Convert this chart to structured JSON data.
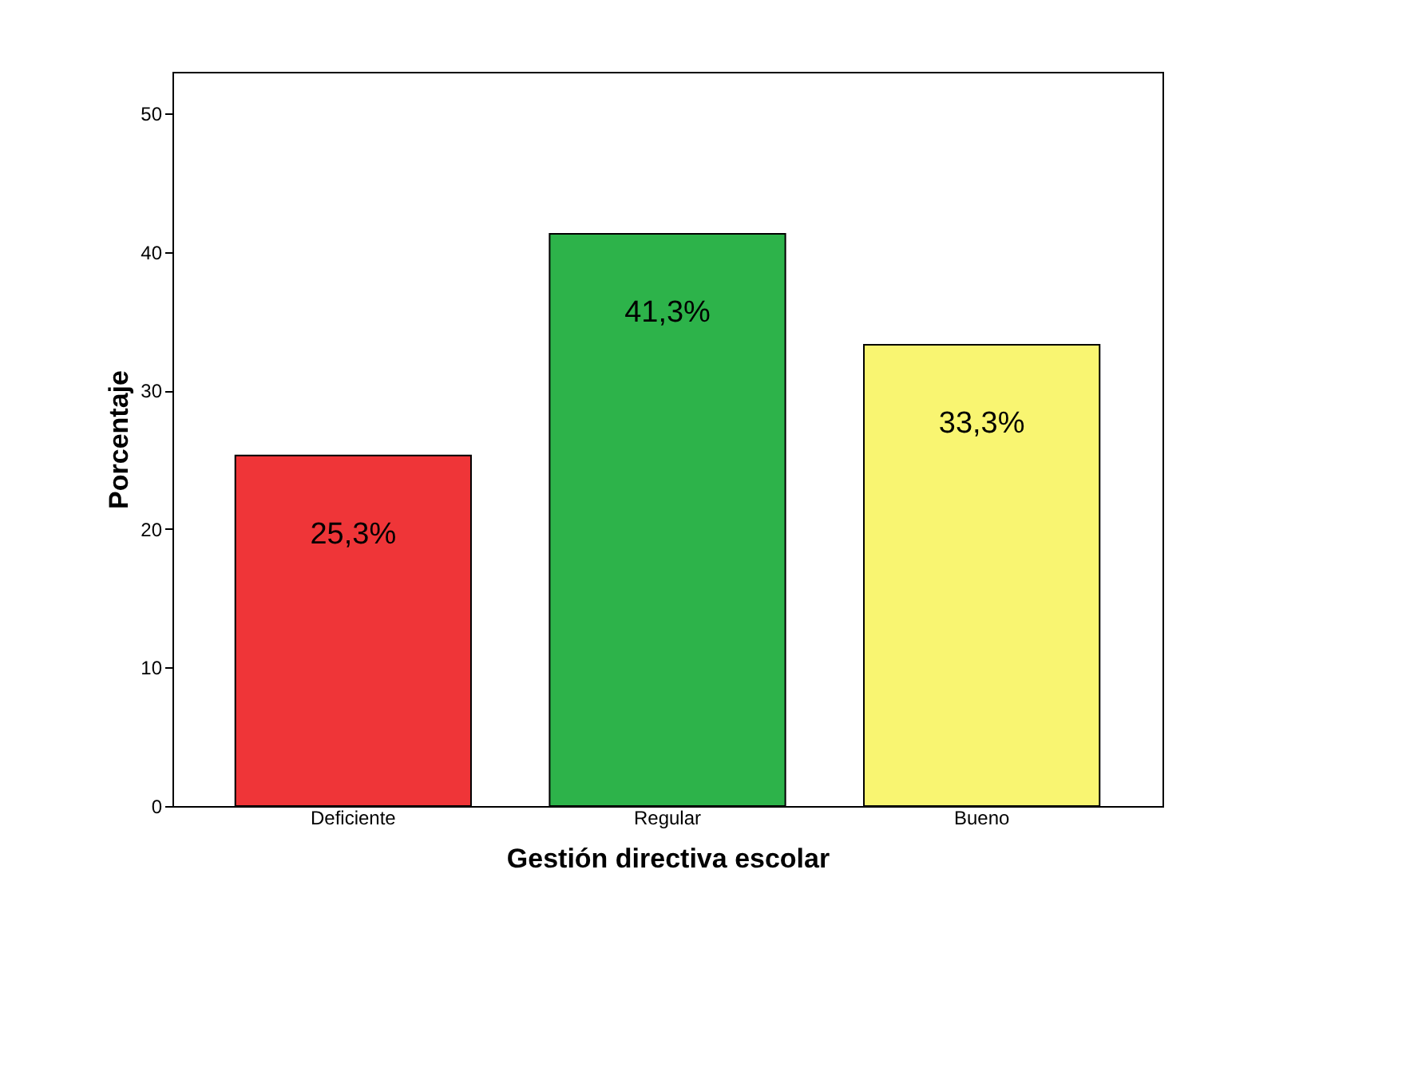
{
  "chart_data": {
    "type": "bar",
    "xlabel": "Gestión directiva escolar",
    "ylabel": "Porcentaje",
    "categories": [
      "Deficiente",
      "Regular",
      "Bueno"
    ],
    "values": [
      25.3,
      41.3,
      33.3
    ],
    "colors": [
      "#ef3538",
      "#2db34a",
      "#f9f571"
    ],
    "value_labels": [
      "25,3%",
      "41,3%",
      "33,3%"
    ],
    "ylim": [
      0,
      53
    ],
    "yticks": [
      0,
      10,
      20,
      30,
      40,
      50
    ],
    "grid": false
  }
}
